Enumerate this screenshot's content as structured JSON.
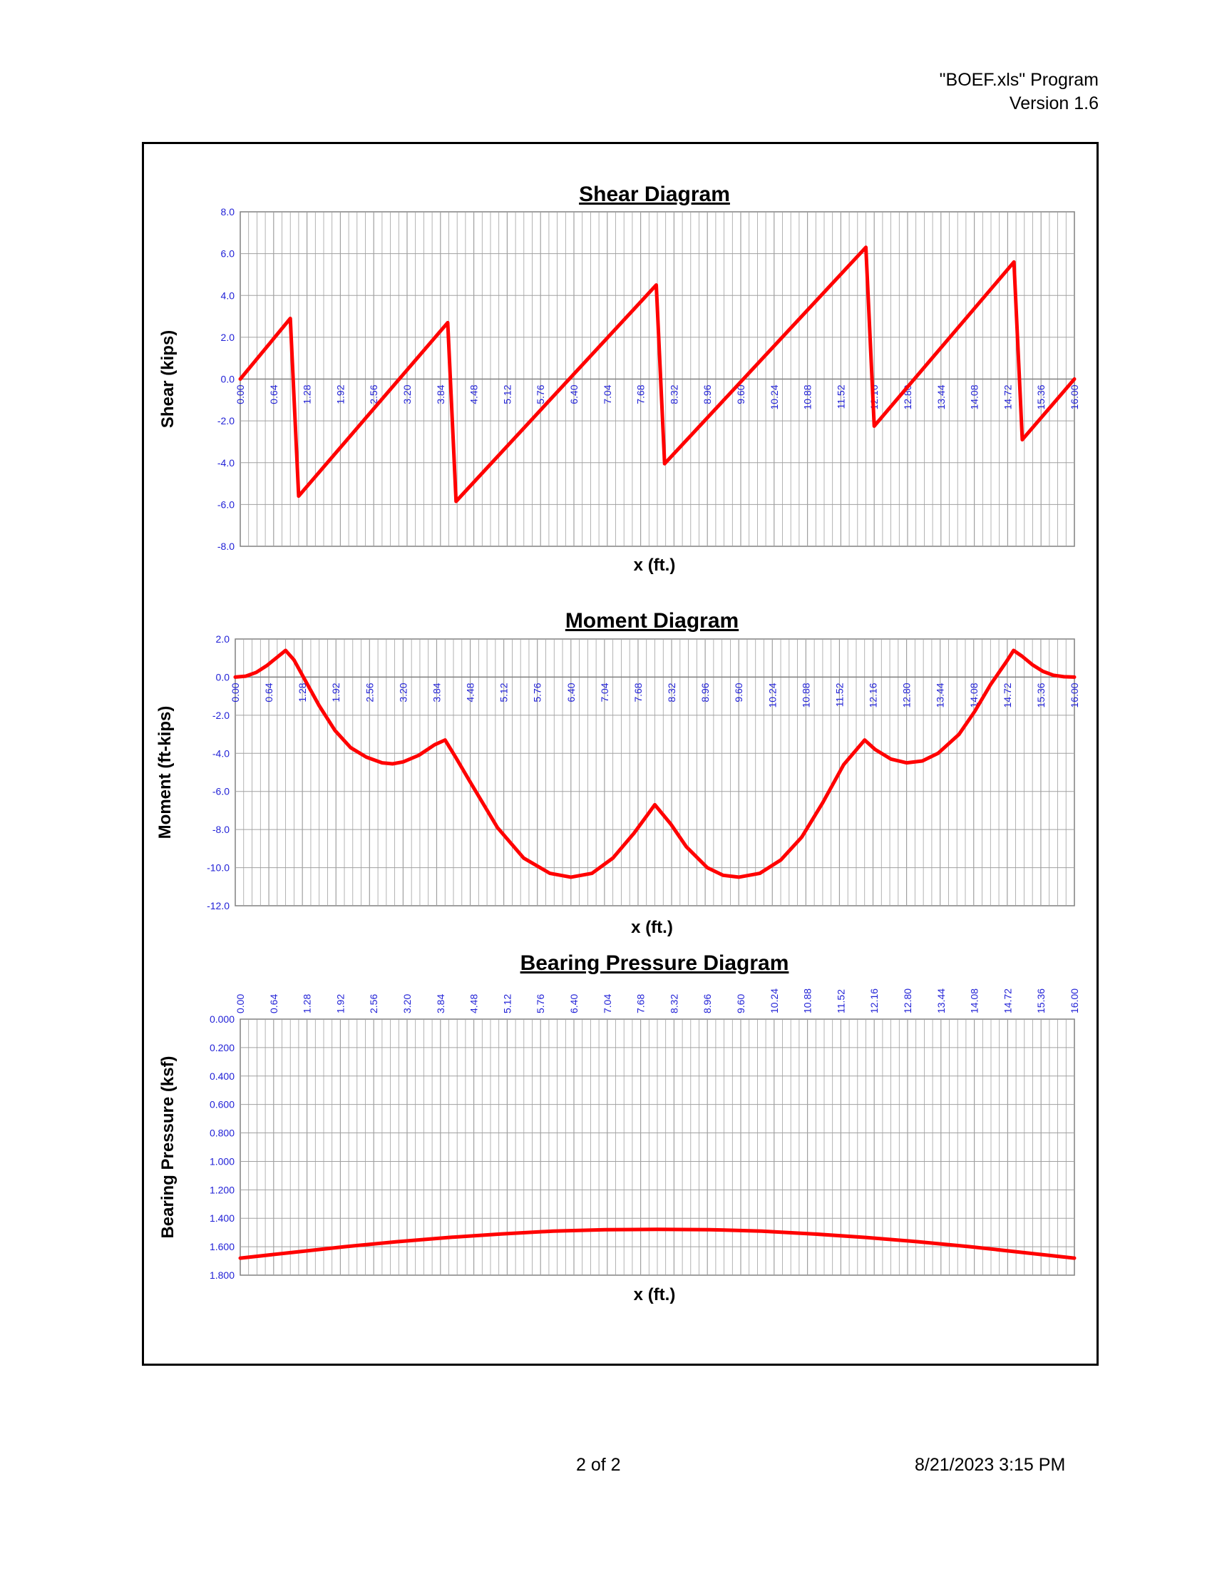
{
  "header": {
    "program": "\"BOEF.xls\" Program",
    "version": "Version 1.6"
  },
  "footer": {
    "page": "2 of 2",
    "datetime": "8/21/2023  3:15 PM"
  },
  "colors": {
    "series": "#ff0000",
    "tick_text": "#1f1fd6",
    "grid": "#a0a0a0"
  },
  "chart_data": [
    {
      "type": "line",
      "title": "Shear Diagram",
      "xlabel": "x (ft.)",
      "ylabel": "Shear (kips)",
      "ylim": [
        -8,
        8
      ],
      "xlim": [
        0,
        16
      ],
      "grid": true,
      "xtick_labels": [
        "0.00",
        "0.64",
        "1.28",
        "1.92",
        "2.56",
        "3.20",
        "3.84",
        "4.48",
        "5.12",
        "5.76",
        "6.40",
        "7.04",
        "7.68",
        "8.32",
        "8.96",
        "9.60",
        "10.24",
        "10.88",
        "11.52",
        "12.16",
        "12.80",
        "13.44",
        "14.08",
        "14.72",
        "15.36",
        "16.00"
      ],
      "ytick_labels": [
        "8.0",
        "6.0",
        "4.0",
        "2.0",
        "0.0",
        "-2.0",
        "-4.0",
        "-6.0",
        "-8.0"
      ],
      "series": [
        {
          "x": [
            0,
            0.96,
            1.12,
            3.98,
            4.14,
            7.98,
            8.14,
            12.0,
            12.16,
            14.84,
            15.0,
            16.0
          ],
          "values": [
            0,
            2.9,
            -5.6,
            2.7,
            -5.85,
            4.5,
            -4.05,
            6.3,
            -2.25,
            5.6,
            -2.9,
            0
          ]
        }
      ]
    },
    {
      "type": "line",
      "title": "Moment Diagram",
      "xlabel": "x (ft.)",
      "ylabel": "Moment (ft-kips)",
      "ylim": [
        -12,
        2
      ],
      "xlim": [
        0,
        16
      ],
      "grid": true,
      "xtick_labels": [
        "0.00",
        "0.64",
        "1.28",
        "1.92",
        "2.56",
        "3.20",
        "3.84",
        "4.48",
        "5.12",
        "5.76",
        "6.40",
        "7.04",
        "7.68",
        "8.32",
        "8.96",
        "9.60",
        "10.24",
        "10.88",
        "11.52",
        "12.16",
        "12.80",
        "13.44",
        "14.08",
        "14.72",
        "15.36",
        "16.00"
      ],
      "ytick_labels": [
        "2.0",
        "0.0",
        "-2.0",
        "-4.0",
        "-6.0",
        "-8.0",
        "-10.0",
        "-12.0"
      ],
      "series": [
        {
          "x": [
            0,
            0.2,
            0.4,
            0.6,
            0.8,
            0.96,
            1.12,
            1.3,
            1.6,
            1.9,
            2.2,
            2.5,
            2.8,
            3.0,
            3.2,
            3.5,
            3.8,
            4.0,
            4.2,
            4.5,
            5.0,
            5.5,
            6.0,
            6.4,
            6.8,
            7.2,
            7.6,
            8.0,
            8.3,
            8.6,
            9.0,
            9.3,
            9.6,
            10.0,
            10.4,
            10.8,
            11.2,
            11.6,
            12.0,
            12.2,
            12.5,
            12.8,
            13.1,
            13.4,
            13.8,
            14.1,
            14.4,
            14.7,
            14.84,
            15.0,
            15.2,
            15.4,
            15.6,
            15.8,
            16.0
          ],
          "values": [
            0,
            0.05,
            0.25,
            0.6,
            1.05,
            1.4,
            0.9,
            0.0,
            -1.5,
            -2.8,
            -3.7,
            -4.2,
            -4.5,
            -4.55,
            -4.45,
            -4.1,
            -3.55,
            -3.3,
            -4.2,
            -5.6,
            -7.9,
            -9.5,
            -10.3,
            -10.5,
            -10.3,
            -9.5,
            -8.2,
            -6.7,
            -7.7,
            -8.9,
            -10.0,
            -10.4,
            -10.5,
            -10.3,
            -9.6,
            -8.4,
            -6.6,
            -4.6,
            -3.3,
            -3.8,
            -4.3,
            -4.5,
            -4.4,
            -4.0,
            -3.0,
            -1.8,
            -0.4,
            0.8,
            1.4,
            1.1,
            0.65,
            0.3,
            0.1,
            0.02,
            0
          ]
        }
      ]
    },
    {
      "type": "line",
      "title": "Bearing Pressure Diagram",
      "xlabel": "x (ft.)",
      "ylabel": "Bearing Pressure (ksf)",
      "ylim": [
        0,
        1.8
      ],
      "y_inverted": true,
      "x_ticks_position": "top",
      "xlim": [
        0,
        16
      ],
      "grid": true,
      "xtick_labels": [
        "0.00",
        "0.64",
        "1.28",
        "1.92",
        "2.56",
        "3.20",
        "3.84",
        "4.48",
        "5.12",
        "5.76",
        "6.40",
        "7.04",
        "7.68",
        "8.32",
        "8.96",
        "9.60",
        "10.24",
        "10.88",
        "11.52",
        "12.16",
        "12.80",
        "13.44",
        "14.08",
        "14.72",
        "15.36",
        "16.00"
      ],
      "ytick_labels": [
        "0.000",
        "0.200",
        "0.400",
        "0.600",
        "0.800",
        "1.000",
        "1.200",
        "1.400",
        "1.600",
        "1.800"
      ],
      "series": [
        {
          "x": [
            0,
            1,
            2,
            3,
            4,
            5,
            6,
            7,
            8,
            9,
            10,
            11,
            12,
            13,
            14,
            15,
            16
          ],
          "values": [
            1.68,
            1.64,
            1.6,
            1.565,
            1.535,
            1.51,
            1.49,
            1.48,
            1.478,
            1.48,
            1.49,
            1.51,
            1.535,
            1.565,
            1.6,
            1.64,
            1.68
          ]
        }
      ]
    }
  ]
}
